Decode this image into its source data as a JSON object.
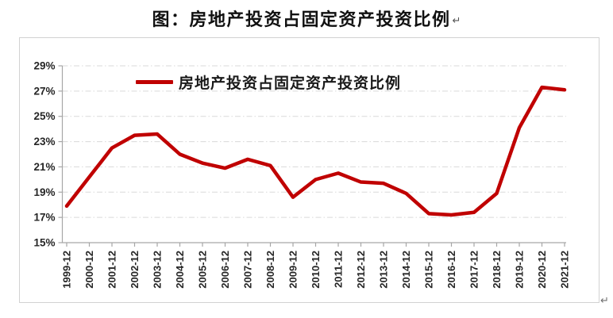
{
  "document": {
    "title": "图：房地产投资占固定资产投资比例",
    "title_paragraph_mark": "↵",
    "end_paragraph_mark": "↵"
  },
  "chart_data": {
    "type": "line",
    "title": "图：房地产投资占固定资产投资比例",
    "xlabel": "",
    "ylabel": "",
    "categories": [
      "1999-12",
      "2000-12",
      "2001-12",
      "2002-12",
      "2003-12",
      "2004-12",
      "2005-12",
      "2006-12",
      "2007-12",
      "2008-12",
      "2009-12",
      "2010-12",
      "2011-12",
      "2012-12",
      "2013-12",
      "2014-12",
      "2015-12",
      "2016-12",
      "2017-12",
      "2018-12",
      "2019-12",
      "2020-12",
      "2021-12"
    ],
    "series": [
      {
        "name": "房地产投资占固定资产投资比例",
        "color": "#c00000",
        "values": [
          17.9,
          20.2,
          22.5,
          23.5,
          23.6,
          22.0,
          21.3,
          20.9,
          21.6,
          21.1,
          18.6,
          20.0,
          20.5,
          19.8,
          19.7,
          18.9,
          17.3,
          17.2,
          17.4,
          18.9,
          24.1,
          27.3,
          27.1
        ]
      }
    ],
    "ylim": [
      15,
      29
    ],
    "ytick_step": 2,
    "ytick_labels": [
      "15%",
      "17%",
      "19%",
      "21%",
      "23%",
      "25%",
      "27%",
      "29%"
    ],
    "grid": {
      "horizontal": true,
      "style": "dash-dot"
    },
    "legend_position": "inside-top-center"
  },
  "colors": {
    "series": "#c00000",
    "grid": "#d9d9d9",
    "axis": "#a6a6a6",
    "tick_text": "#262626",
    "frame_border": "#d2d2d2",
    "background": "#ffffff"
  }
}
